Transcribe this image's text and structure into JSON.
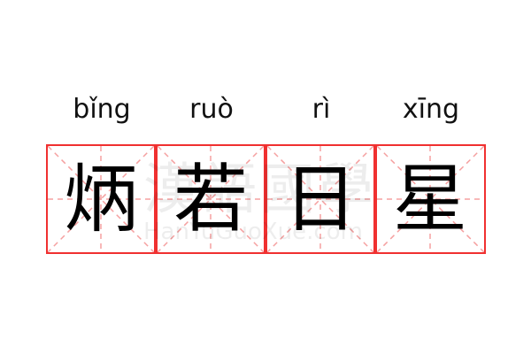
{
  "phrase": [
    {
      "pinyin": "bǐng",
      "char": "炳"
    },
    {
      "pinyin": "ruò",
      "char": "若"
    },
    {
      "pinyin": "rì",
      "char": "日"
    },
    {
      "pinyin": "xīng",
      "char": "星"
    }
  ],
  "watermark": {
    "cn": "漢語國學",
    "en": "HanYuGuoXue.com"
  },
  "colors": {
    "grid_border": "#f03030",
    "guide": "#f5a0a0"
  }
}
